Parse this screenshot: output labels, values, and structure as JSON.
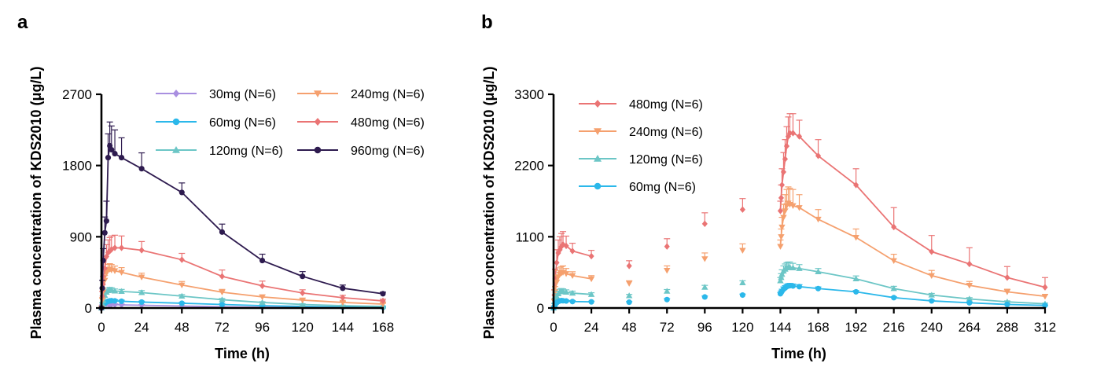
{
  "chart_data": [
    {
      "type": "line",
      "panel_label": "a",
      "xlabel": "Time (h)",
      "ylabel": "Plasma concentration of KDS2010 (μg/L)",
      "xlim": [
        0,
        168
      ],
      "ylim": [
        0,
        2700
      ],
      "xticks": [
        0,
        24,
        48,
        72,
        96,
        120,
        144,
        168
      ],
      "yticks": [
        0,
        900,
        1800,
        2700
      ],
      "legend": {
        "columns": 2,
        "placement": "top-right"
      },
      "series": [
        {
          "name": "30mg (N=6)",
          "color": "#a98fe0",
          "marker": "diamond",
          "legend_slot": 0,
          "x": [
            0,
            0.5,
            1,
            2,
            3,
            4,
            5,
            6,
            8,
            12,
            24,
            48,
            72,
            96,
            120,
            144,
            168
          ],
          "y": [
            0,
            30,
            45,
            55,
            55,
            50,
            45,
            45,
            42,
            40,
            35,
            25,
            15,
            10,
            8,
            5,
            3
          ],
          "err": [
            0,
            10,
            10,
            10,
            10,
            10,
            10,
            10,
            10,
            10,
            8,
            6,
            5,
            4,
            3,
            2,
            2
          ]
        },
        {
          "name": "60mg (N=6)",
          "color": "#2bb8ea",
          "marker": "circle",
          "legend_slot": 2,
          "x": [
            0,
            0.5,
            1,
            2,
            3,
            4,
            5,
            6,
            8,
            12,
            24,
            48,
            72,
            96,
            120,
            144,
            168
          ],
          "y": [
            0,
            20,
            40,
            60,
            75,
            85,
            90,
            92,
            90,
            85,
            75,
            60,
            45,
            30,
            20,
            12,
            8
          ],
          "err": [
            0,
            8,
            10,
            12,
            15,
            15,
            15,
            15,
            15,
            15,
            12,
            10,
            8,
            6,
            5,
            4,
            3
          ]
        },
        {
          "name": "120mg (N=6)",
          "color": "#6cc6c6",
          "marker": "triangle",
          "legend_slot": 4,
          "x": [
            0,
            0.5,
            1,
            2,
            3,
            4,
            5,
            6,
            8,
            12,
            24,
            48,
            72,
            96,
            120,
            144,
            168
          ],
          "y": [
            0,
            50,
            100,
            160,
            200,
            220,
            230,
            225,
            215,
            210,
            195,
            150,
            105,
            70,
            45,
            30,
            20
          ],
          "err": [
            0,
            15,
            20,
            25,
            30,
            30,
            30,
            30,
            25,
            25,
            25,
            20,
            15,
            10,
            8,
            6,
            5
          ]
        },
        {
          "name": "240mg (N=6)",
          "color": "#f5a06e",
          "marker": "triangle-down",
          "legend_slot": 1,
          "x": [
            0,
            0.5,
            1,
            2,
            3,
            4,
            5,
            6,
            8,
            12,
            24,
            48,
            72,
            96,
            120,
            144,
            168
          ],
          "y": [
            0,
            100,
            200,
            350,
            440,
            480,
            490,
            480,
            470,
            450,
            390,
            290,
            200,
            140,
            100,
            70,
            50
          ],
          "err": [
            0,
            30,
            50,
            60,
            70,
            70,
            70,
            70,
            60,
            60,
            50,
            45,
            35,
            25,
            20,
            15,
            10
          ]
        },
        {
          "name": "480mg (N=6)",
          "color": "#ea7474",
          "marker": "diamond",
          "legend_slot": 3,
          "x": [
            0,
            0.5,
            1,
            2,
            3,
            4,
            5,
            6,
            8,
            12,
            24,
            48,
            72,
            96,
            120,
            144,
            168
          ],
          "y": [
            0,
            150,
            300,
            500,
            650,
            700,
            720,
            740,
            760,
            760,
            730,
            610,
            400,
            280,
            190,
            130,
            90
          ],
          "err": [
            0,
            60,
            100,
            130,
            150,
            160,
            170,
            170,
            160,
            150,
            110,
            80,
            80,
            60,
            40,
            30,
            20
          ]
        },
        {
          "name": "960mg (N=6)",
          "color": "#2e1b4f",
          "marker": "circle",
          "legend_slot": 5,
          "x": [
            0,
            0.5,
            1,
            2,
            3,
            4,
            5,
            6,
            8,
            12,
            24,
            48,
            72,
            96,
            120,
            144,
            168
          ],
          "y": [
            0,
            250,
            600,
            950,
            1100,
            1900,
            2050,
            2000,
            1950,
            1900,
            1760,
            1460,
            960,
            600,
            400,
            250,
            180
          ],
          "err": [
            0,
            100,
            150,
            200,
            250,
            300,
            300,
            300,
            300,
            250,
            200,
            120,
            100,
            80,
            60,
            40,
            20
          ]
        }
      ]
    },
    {
      "type": "line",
      "panel_label": "b",
      "xlabel": "Time (h)",
      "ylabel": "Plasma concentration of KDS2010 (μg/L)",
      "xlim": [
        0,
        312
      ],
      "ylim": [
        0,
        3300
      ],
      "xticks": [
        0,
        24,
        48,
        72,
        96,
        120,
        144,
        168,
        192,
        216,
        240,
        264,
        288,
        312
      ],
      "yticks": [
        0,
        1100,
        2200,
        3300
      ],
      "legend": {
        "columns": 1,
        "placement": "top-left"
      },
      "series": [
        {
          "name": "480mg (N=6)",
          "color": "#ea7474",
          "marker": "diamond",
          "legend_slot": 0,
          "x1": [
            0,
            0.5,
            1,
            2,
            3,
            4,
            5,
            6,
            8,
            12,
            24
          ],
          "y1": [
            0,
            200,
            450,
            700,
            850,
            900,
            950,
            980,
            960,
            880,
            800
          ],
          "err1": [
            0,
            80,
            150,
            200,
            200,
            200,
            200,
            200,
            150,
            120,
            90
          ],
          "trough_x": [
            48,
            72,
            96,
            120
          ],
          "trough_y": [
            650,
            950,
            1300,
            1520
          ],
          "trough_err": [
            80,
            120,
            170,
            170
          ],
          "x2": [
            144,
            144.5,
            145,
            146,
            147,
            148,
            149,
            150,
            152,
            156,
            168,
            192,
            216,
            240,
            264,
            288,
            312
          ],
          "y2": [
            1500,
            1700,
            1900,
            2100,
            2300,
            2500,
            2650,
            2700,
            2700,
            2650,
            2350,
            1900,
            1250,
            870,
            680,
            470,
            320
          ],
          "err2": [
            150,
            200,
            250,
            300,
            300,
            300,
            300,
            300,
            300,
            250,
            250,
            250,
            300,
            250,
            250,
            170,
            150
          ]
        },
        {
          "name": "240mg (N=6)",
          "color": "#f5a06e",
          "marker": "triangle-down",
          "legend_slot": 1,
          "x1": [
            0,
            0.5,
            1,
            2,
            3,
            4,
            5,
            6,
            8,
            12,
            24
          ],
          "y1": [
            0,
            100,
            250,
            400,
            480,
            520,
            540,
            550,
            530,
            500,
            450
          ],
          "err1": [
            0,
            40,
            80,
            100,
            100,
            100,
            100,
            100,
            80,
            60,
            50
          ],
          "trough_x": [
            48,
            72,
            96,
            120
          ],
          "trough_y": [
            380,
            580,
            760,
            890
          ],
          "trough_err": [
            40,
            70,
            90,
            100
          ],
          "x2": [
            144,
            144.5,
            145,
            146,
            147,
            148,
            149,
            150,
            152,
            156,
            168,
            192,
            216,
            240,
            264,
            288,
            312
          ],
          "y2": [
            950,
            1100,
            1250,
            1400,
            1500,
            1580,
            1620,
            1600,
            1580,
            1550,
            1370,
            1090,
            730,
            500,
            350,
            250,
            180
          ],
          "err2": [
            100,
            120,
            150,
            200,
            250,
            250,
            250,
            250,
            250,
            200,
            150,
            130,
            100,
            80,
            60,
            40,
            30
          ]
        },
        {
          "name": "120mg (N=6)",
          "color": "#6cc6c6",
          "marker": "triangle",
          "legend_slot": 2,
          "x1": [
            0,
            0.5,
            1,
            2,
            3,
            4,
            5,
            6,
            8,
            12,
            24
          ],
          "y1": [
            0,
            50,
            120,
            180,
            220,
            250,
            260,
            255,
            245,
            230,
            210
          ],
          "err1": [
            0,
            20,
            30,
            40,
            40,
            40,
            40,
            40,
            35,
            30,
            25
          ],
          "trough_x": [
            48,
            72,
            96,
            120
          ],
          "trough_y": [
            190,
            260,
            320,
            390
          ],
          "trough_err": [
            20,
            25,
            30,
            30
          ],
          "x2": [
            144,
            144.5,
            145,
            146,
            147,
            148,
            149,
            150,
            152,
            156,
            168,
            192,
            216,
            240,
            264,
            288,
            312
          ],
          "y2": [
            420,
            470,
            520,
            570,
            600,
            620,
            630,
            630,
            620,
            610,
            560,
            450,
            300,
            200,
            140,
            95,
            65
          ],
          "err2": [
            50,
            60,
            70,
            80,
            80,
            80,
            80,
            80,
            70,
            60,
            50,
            45,
            35,
            25,
            20,
            15,
            10
          ]
        },
        {
          "name": "60mg (N=6)",
          "color": "#2bb8ea",
          "marker": "circle",
          "legend_slot": 3,
          "x1": [
            0,
            0.5,
            1,
            2,
            3,
            4,
            5,
            6,
            8,
            12,
            24
          ],
          "y1": [
            0,
            20,
            50,
            80,
            100,
            110,
            115,
            112,
            108,
            100,
            95
          ],
          "err1": [
            0,
            10,
            15,
            20,
            20,
            20,
            20,
            20,
            15,
            15,
            10
          ],
          "trough_x": [
            48,
            72,
            96,
            120
          ],
          "trough_y": [
            90,
            130,
            170,
            200
          ],
          "trough_err": [
            10,
            15,
            15,
            15
          ],
          "x2": [
            144,
            144.5,
            145,
            146,
            147,
            148,
            149,
            150,
            152,
            156,
            168,
            192,
            216,
            240,
            264,
            288,
            312
          ],
          "y2": [
            220,
            240,
            260,
            290,
            310,
            330,
            340,
            345,
            340,
            330,
            300,
            250,
            160,
            110,
            80,
            55,
            40
          ],
          "err2": [
            20,
            25,
            30,
            35,
            35,
            35,
            35,
            35,
            30,
            30,
            25,
            20,
            15,
            12,
            10,
            8,
            6
          ]
        }
      ]
    }
  ]
}
